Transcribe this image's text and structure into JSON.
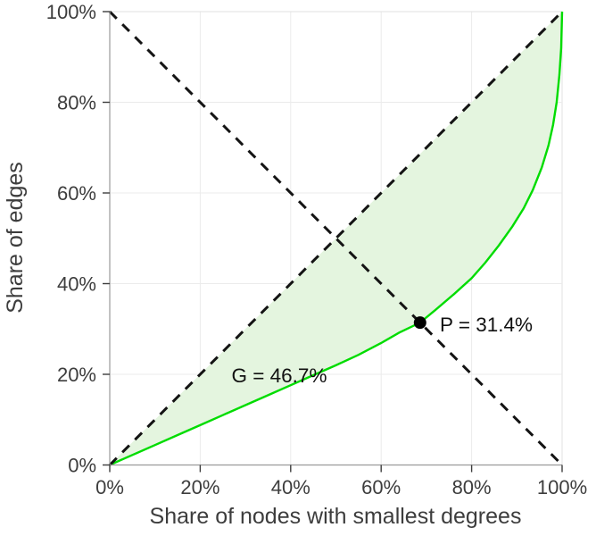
{
  "figure": {
    "title": "",
    "xlabel": "Share of nodes with smallest degrees",
    "ylabel": "Share of edges"
  },
  "chart_data": {
    "type": "line",
    "title": "",
    "xlabel": "Share of nodes with smallest degrees",
    "ylabel": "Share of edges",
    "xlim": [
      0,
      100
    ],
    "ylim": [
      0,
      100
    ],
    "grid": true,
    "x_ticks": [
      {
        "value": 0,
        "label": "0%"
      },
      {
        "value": 20,
        "label": "20%"
      },
      {
        "value": 40,
        "label": "40%"
      },
      {
        "value": 60,
        "label": "60%"
      },
      {
        "value": 80,
        "label": "80%"
      },
      {
        "value": 100,
        "label": "100%"
      }
    ],
    "y_ticks": [
      {
        "value": 0,
        "label": "0%"
      },
      {
        "value": 20,
        "label": "20%"
      },
      {
        "value": 40,
        "label": "40%"
      },
      {
        "value": 60,
        "label": "60%"
      },
      {
        "value": 80,
        "label": "80%"
      },
      {
        "value": 100,
        "label": "100%"
      }
    ],
    "series": [
      {
        "name": "lorenz-curve-share-of-edges",
        "style": "solid",
        "color": "#00dc00",
        "width": 2.4,
        "points": [
          [
            0,
            0
          ],
          [
            5,
            2.2
          ],
          [
            10,
            4.4
          ],
          [
            15,
            6.6
          ],
          [
            20,
            8.8
          ],
          [
            25,
            11.0
          ],
          [
            30,
            13.2
          ],
          [
            35,
            15.4
          ],
          [
            40,
            17.6
          ],
          [
            45,
            19.8
          ],
          [
            50,
            22.0
          ],
          [
            55,
            24.3
          ],
          [
            60,
            26.9
          ],
          [
            64,
            29.2
          ],
          [
            68.6,
            31.4
          ],
          [
            72,
            34.2
          ],
          [
            76,
            37.6
          ],
          [
            80,
            41.2
          ],
          [
            83,
            44.6
          ],
          [
            86,
            48.4
          ],
          [
            89,
            52.6
          ],
          [
            91.5,
            56.6
          ],
          [
            93.5,
            60.6
          ],
          [
            95.5,
            65.6
          ],
          [
            97,
            70.5
          ],
          [
            98,
            75.0
          ],
          [
            98.8,
            80.0
          ],
          [
            99.4,
            86.0
          ],
          [
            99.8,
            92.0
          ],
          [
            100,
            100
          ]
        ]
      },
      {
        "name": "equality-diagonal",
        "style": "dashed",
        "color": "#141414",
        "width": 3,
        "points": [
          [
            0,
            0
          ],
          [
            100,
            100
          ]
        ]
      },
      {
        "name": "anti-diagonal",
        "style": "dashed",
        "color": "#141414",
        "width": 3,
        "points": [
          [
            0,
            100
          ],
          [
            100,
            0
          ]
        ]
      }
    ],
    "fill_between": {
      "upper": "equality-diagonal",
      "lower": "lorenz-curve-share-of-edges",
      "color": "#e4f5df"
    },
    "marker": {
      "x": 68.6,
      "y": 31.4,
      "label": "P = 31.4%",
      "color": "#000000"
    },
    "gini_annotation": {
      "text": "G = 46.7%",
      "x": 37.5,
      "y": 19.9
    },
    "gini_percent": 46.7,
    "p_index_percent": 31.4,
    "legend": null
  },
  "style": {
    "grid_color": "#ebebeb",
    "box_color": "#e0e0e0",
    "axis_color": "#9a9a9a",
    "tick_color": "#3d3d3d",
    "label_color": "#3d3d3d",
    "annotation_color": "#111111",
    "background": "#ffffff"
  }
}
